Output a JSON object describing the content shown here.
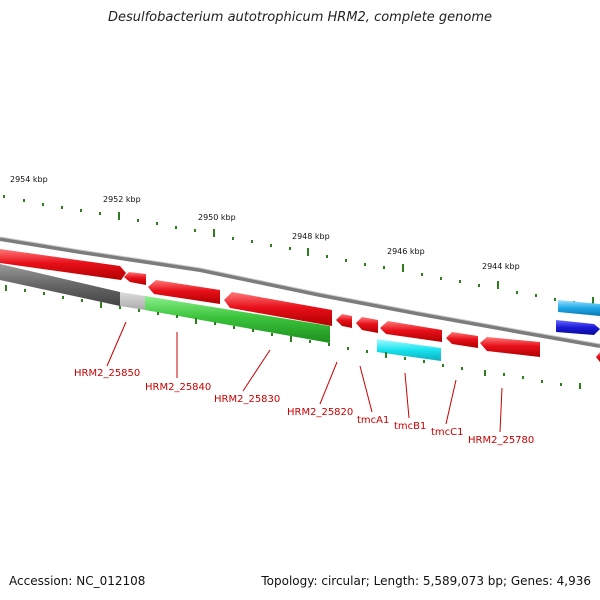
{
  "title": "Desulfobacterium autotrophicum HRM2, complete genome",
  "ruler": {
    "labels": [
      "2954 kbp",
      "2952 kbp",
      "2950 kbp",
      "2948 kbp",
      "2946 kbp",
      "2944 kbp"
    ]
  },
  "genes": {
    "labels": [
      "HRM2_25850",
      "HRM2_25840",
      "HRM2_25830",
      "HRM2_25820",
      "tmcA1",
      "tmcB1",
      "tmcC1",
      "HRM2_25780"
    ]
  },
  "footer": {
    "accession": "Accession: NC_012108",
    "summary": "Topology: circular; Length: 5,589,073 bp; Genes: 4,936"
  },
  "colors": {
    "gene_red": "#e8101a",
    "gene_green": "#3cc43c",
    "gene_gray": "#666666",
    "gene_cyan": "#18e2ee",
    "gene_blue": "#1a1ad8",
    "tick_green": "#2e7d1e",
    "label_red": "#cc0000"
  }
}
